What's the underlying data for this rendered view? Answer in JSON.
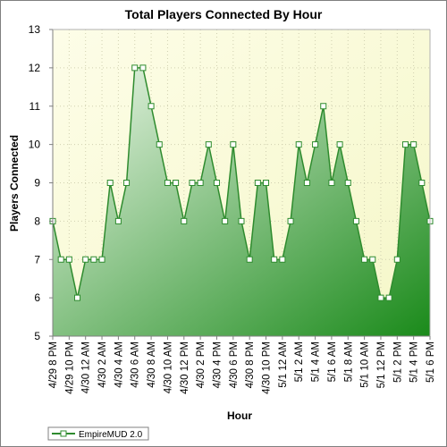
{
  "chart_data": {
    "type": "area",
    "title": "Total Players Connected By Hour",
    "xlabel": "Hour",
    "ylabel": "Players Connected",
    "ylim": [
      5,
      13
    ],
    "yticks": [
      "5",
      "6",
      "7",
      "8",
      "9",
      "10",
      "11",
      "12",
      "13"
    ],
    "grid": true,
    "legend_placement": "bottom-left",
    "x": [
      "4/29 8 PM",
      "4/29 9 PM",
      "4/29 10 PM",
      "4/29 11 PM",
      "4/30 12 AM",
      "4/30 1 AM",
      "4/30 2 AM",
      "4/30 3 AM",
      "4/30 4 AM",
      "4/30 5 AM",
      "4/30 6 AM",
      "4/30 7 AM",
      "4/30 8 AM",
      "4/30 9 AM",
      "4/30 10 AM",
      "4/30 11 AM",
      "4/30 12 PM",
      "4/30 1 PM",
      "4/30 2 PM",
      "4/30 3 PM",
      "4/30 4 PM",
      "4/30 5 PM",
      "4/30 6 PM",
      "4/30 7 PM",
      "4/30 8 PM",
      "4/30 9 PM",
      "4/30 10 PM",
      "4/30 11 PM",
      "5/1 12 AM",
      "5/1 1 AM",
      "5/1 2 AM",
      "5/1 3 AM",
      "5/1 4 AM",
      "5/1 5 AM",
      "5/1 6 AM",
      "5/1 7 AM",
      "5/1 8 AM",
      "5/1 9 AM",
      "5/1 10 AM",
      "5/1 11 AM",
      "5/1 12 PM",
      "5/1 1 PM",
      "5/1 2 PM",
      "5/1 3 PM",
      "5/1 4 PM",
      "5/1 5 PM",
      "5/1 6 PM"
    ],
    "xtick_labels": [
      "4/29 8 PM",
      "4/29 10 PM",
      "4/30 12 AM",
      "4/30 2 AM",
      "4/30 4 AM",
      "4/30 6 AM",
      "4/30 8 AM",
      "4/30 10 AM",
      "4/30 12 PM",
      "4/30 2 PM",
      "4/30 4 PM",
      "4/30 6 PM",
      "4/30 8 PM",
      "4/30 10 PM",
      "5/1 12 AM",
      "5/1 2 AM",
      "5/1 4 AM",
      "5/1 6 AM",
      "5/1 8 AM",
      "5/1 10 AM",
      "5/1 12 PM",
      "5/1 2 PM",
      "5/1 4 PM",
      "5/1 6 PM"
    ],
    "series": [
      {
        "name": "EmpireMUD 2.0",
        "values": [
          8,
          7,
          7,
          6,
          7,
          7,
          7,
          9,
          8,
          9,
          12,
          12,
          11,
          10,
          9,
          9,
          8,
          9,
          9,
          10,
          9,
          8,
          10,
          8,
          7,
          9,
          9,
          7,
          7,
          8,
          10,
          9,
          10,
          11,
          9,
          10,
          9,
          8,
          7,
          7,
          6,
          6,
          7,
          10,
          10,
          9,
          8
        ]
      }
    ],
    "colors": {
      "line": "#2e8b2e",
      "fill_top": "#eef7ea",
      "fill_bottom": "#1a8a1a",
      "plot_background_top": "#fdfde8",
      "plot_background_bottom": "#f5f7c8",
      "grid": "#d0d0b0",
      "marker_fill": "#ffffff"
    }
  }
}
